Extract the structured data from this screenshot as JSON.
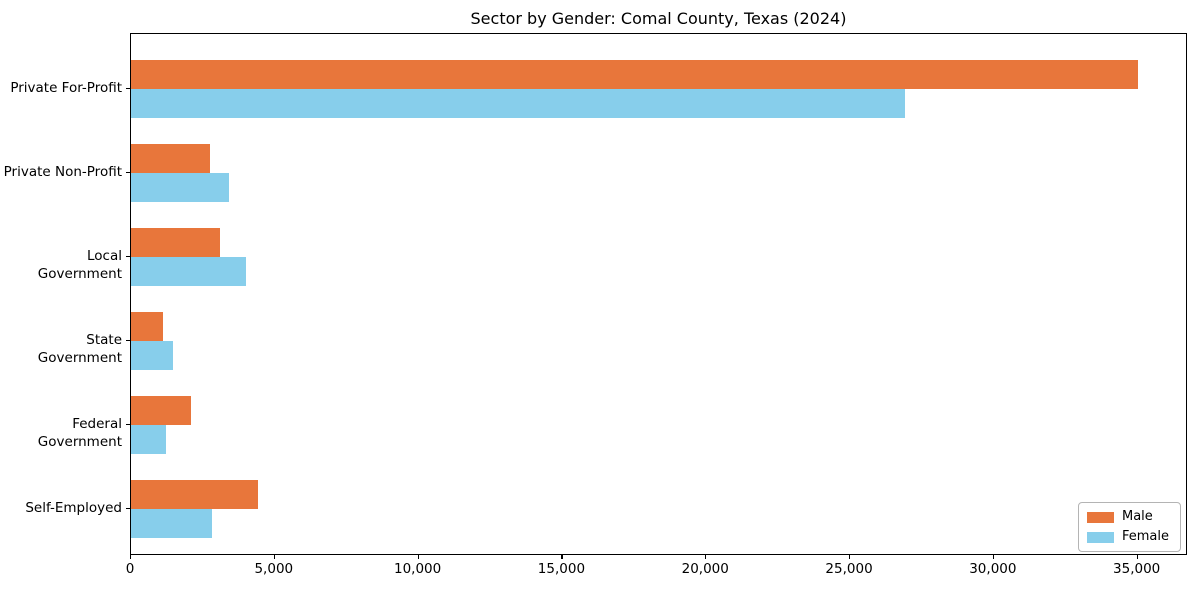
{
  "chart_data": {
    "type": "bar",
    "orientation": "horizontal",
    "title": "Sector by Gender: Comal County, Texas (2024)",
    "categories": [
      "Private For-Profit",
      "Private Non-Profit",
      "Local Government",
      "State Government",
      "Federal Government",
      "Self-Employed"
    ],
    "series": [
      {
        "name": "Male",
        "color": "#E8763B",
        "values": [
          35000,
          2750,
          3100,
          1100,
          2100,
          4400
        ]
      },
      {
        "name": "Female",
        "color": "#87CEEB",
        "values": [
          26900,
          3400,
          4000,
          1450,
          1200,
          2800
        ]
      }
    ],
    "xlabel": "",
    "ylabel": "",
    "xlim": [
      0,
      36750
    ],
    "xticks": [
      0,
      5000,
      10000,
      15000,
      20000,
      25000,
      30000,
      35000
    ],
    "xtick_labels": [
      "0",
      "5,000",
      "10,000",
      "15,000",
      "20,000",
      "25,000",
      "30,000",
      "35,000"
    ],
    "grid": false,
    "legend": {
      "position": "lower right"
    }
  }
}
